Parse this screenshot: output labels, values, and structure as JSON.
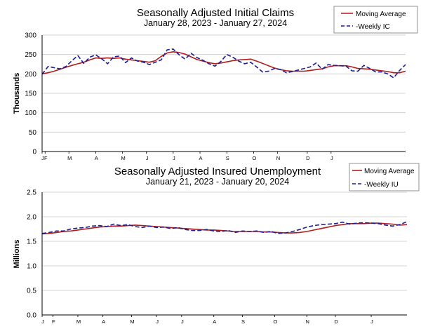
{
  "chart_data": [
    {
      "type": "line",
      "title": "Seasonally Adjusted Initial Claims",
      "subtitle": "January 28, 2023 - January 27, 2024",
      "ylabel": "Thousands",
      "ylim": [
        0,
        300
      ],
      "yticks": [
        0,
        50,
        100,
        150,
        200,
        250,
        300
      ],
      "ytick_labels": [
        "0",
        "50",
        "100",
        "150",
        "200",
        "250",
        "300"
      ],
      "months": [
        "J",
        "F",
        "M",
        "A",
        "M",
        "J",
        "J",
        "A",
        "S",
        "O",
        "N",
        "D",
        "J"
      ],
      "month_pos": [
        0,
        0.5,
        4.5,
        9,
        13.5,
        17.5,
        22,
        26.5,
        31,
        35.5,
        39.5,
        44.5,
        48.5
      ],
      "legend": {
        "placement": "top-right"
      },
      "series": [
        {
          "name": "Moving Average",
          "color": "#b01c1c",
          "style": "solid",
          "values": [
            200,
            203,
            207,
            212,
            217,
            222,
            226,
            230,
            236,
            241,
            240,
            241,
            240,
            241,
            238,
            236,
            234,
            232,
            230,
            234,
            245,
            254,
            257,
            255,
            251,
            244,
            237,
            233,
            229,
            226,
            228,
            231,
            234,
            236,
            237,
            238,
            233,
            227,
            221,
            215,
            211,
            208,
            207,
            207,
            207,
            209,
            211,
            213,
            218,
            221,
            221,
            221,
            218,
            214,
            213,
            212,
            210,
            208,
            206,
            203,
            203,
            207
          ]
        },
        {
          "name": "-Weekly IC",
          "color": "#1c1c96",
          "style": "dashed",
          "values": [
            199,
            219,
            216,
            213,
            219,
            234,
            247,
            227,
            243,
            249,
            239,
            226,
            244,
            246,
            229,
            241,
            233,
            230,
            224,
            230,
            236,
            262,
            264,
            249,
            238,
            253,
            242,
            235,
            226,
            220,
            232,
            250,
            243,
            233,
            226,
            230,
            218,
            205,
            207,
            214,
            211,
            203,
            206,
            210,
            214,
            218,
            228,
            212,
            224,
            222,
            221,
            220,
            208,
            207,
            222,
            214,
            205,
            205,
            200,
            190,
            209,
            224
          ]
        }
      ]
    },
    {
      "type": "line",
      "title": "Seasonally Adjusted Insured Unemployment",
      "subtitle": "January 21, 2023 - January 20, 2024",
      "ylabel": "Millions",
      "ylim": [
        0,
        2.5
      ],
      "yticks": [
        0,
        0.5,
        1,
        1.5,
        2,
        2.5
      ],
      "ytick_labels": [
        "0.0",
        "0.5",
        "1.0",
        "1.5",
        "2.0",
        "2.5"
      ],
      "months": [
        "J",
        "F",
        "M",
        "A",
        "M",
        "J",
        "J",
        "A",
        "S",
        "O",
        "N",
        "D",
        "J"
      ],
      "month_pos": [
        0,
        1.5,
        5,
        8.5,
        12.5,
        16,
        19.5,
        24,
        28,
        32.5,
        37,
        41,
        46
      ],
      "legend": {
        "placement": "top-right"
      },
      "series": [
        {
          "name": "Moving Average",
          "color": "#b01c1c",
          "style": "solid",
          "values": [
            1.65,
            1.66,
            1.68,
            1.7,
            1.71,
            1.73,
            1.75,
            1.77,
            1.79,
            1.8,
            1.81,
            1.81,
            1.82,
            1.83,
            1.82,
            1.81,
            1.8,
            1.79,
            1.78,
            1.77,
            1.76,
            1.75,
            1.74,
            1.73,
            1.73,
            1.72,
            1.71,
            1.7,
            1.7,
            1.7,
            1.7,
            1.69,
            1.69,
            1.68,
            1.67,
            1.67,
            1.68,
            1.7,
            1.73,
            1.76,
            1.79,
            1.82,
            1.84,
            1.86,
            1.86,
            1.86,
            1.87,
            1.87,
            1.86,
            1.85,
            1.83,
            1.84
          ]
        },
        {
          "name": "-Weekly IU",
          "color": "#1c1c96",
          "style": "dashed",
          "values": [
            1.66,
            1.68,
            1.71,
            1.71,
            1.75,
            1.77,
            1.78,
            1.81,
            1.82,
            1.8,
            1.85,
            1.82,
            1.84,
            1.8,
            1.78,
            1.81,
            1.78,
            1.79,
            1.76,
            1.78,
            1.74,
            1.72,
            1.72,
            1.74,
            1.71,
            1.7,
            1.72,
            1.68,
            1.71,
            1.7,
            1.71,
            1.68,
            1.7,
            1.66,
            1.67,
            1.7,
            1.74,
            1.79,
            1.82,
            1.84,
            1.85,
            1.86,
            1.89,
            1.85,
            1.87,
            1.88,
            1.87,
            1.86,
            1.83,
            1.81,
            1.84,
            1.9
          ]
        }
      ]
    }
  ]
}
